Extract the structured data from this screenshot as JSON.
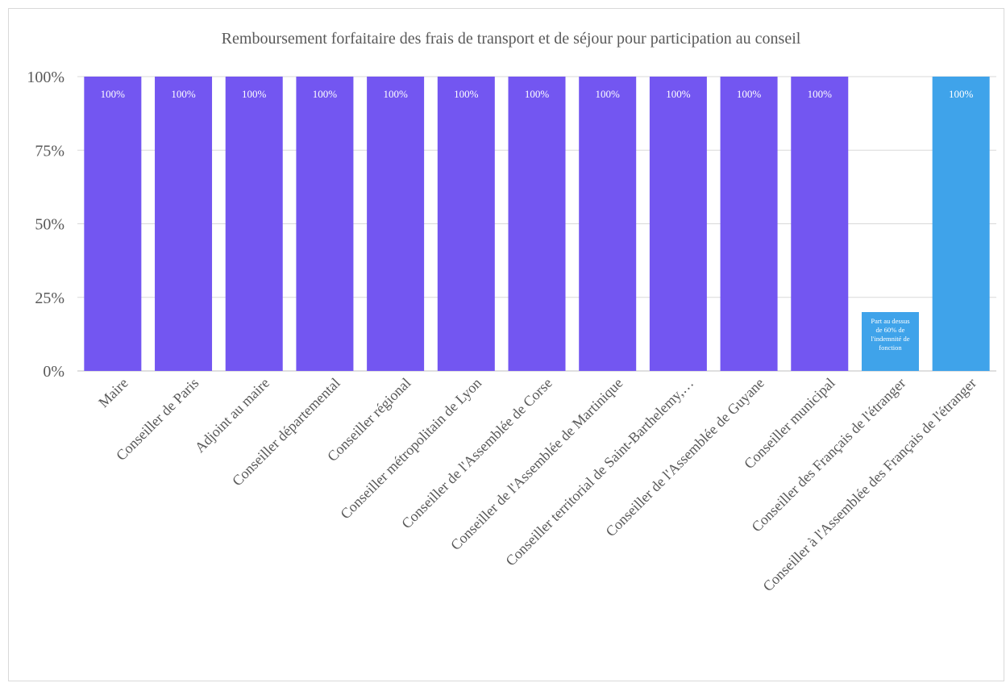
{
  "chart_data": {
    "type": "bar",
    "title": "Remboursement forfaitaire des frais de transport et de séjour pour participation au conseil",
    "categories": [
      "Maire",
      "Conseiller de Paris",
      "Adjoint au maire",
      "Conseiller départemental",
      "Conseiller régional",
      "Conseiller métropolitain de Lyon",
      "Conseiller de l'Assemblée de Corse",
      "Conseiller de l'Assemblée de Martinique",
      "Conseiller territorial de Saint-Barthelemy,…",
      "Conseiller de l'Assemblée de Guyane",
      "Conseiller municipal",
      "Conseiller des Français de l'étranger",
      "Conseiller à l'Assemblée des Français de l'étranger"
    ],
    "values": [
      1.0,
      1.0,
      1.0,
      1.0,
      1.0,
      1.0,
      1.0,
      1.0,
      1.0,
      1.0,
      1.0,
      0.2,
      1.0
    ],
    "data_labels": [
      "100%",
      "100%",
      "100%",
      "100%",
      "100%",
      "100%",
      "100%",
      "100%",
      "100%",
      "100%",
      "100%",
      "",
      "100%"
    ],
    "note_label_lines": [
      "Part au dessus",
      "de 60% de",
      "l'indemnité de",
      "fonction"
    ],
    "bar_colors": [
      "#7356f1",
      "#7356f1",
      "#7356f1",
      "#7356f1",
      "#7356f1",
      "#7356f1",
      "#7356f1",
      "#7356f1",
      "#7356f1",
      "#7356f1",
      "#7356f1",
      "#3fa3ea",
      "#3fa3ea"
    ],
    "yticks": [
      "0%",
      "25%",
      "50%",
      "75%",
      "100%"
    ],
    "ylim": [
      0,
      1
    ],
    "grid": true,
    "legend": "none"
  }
}
